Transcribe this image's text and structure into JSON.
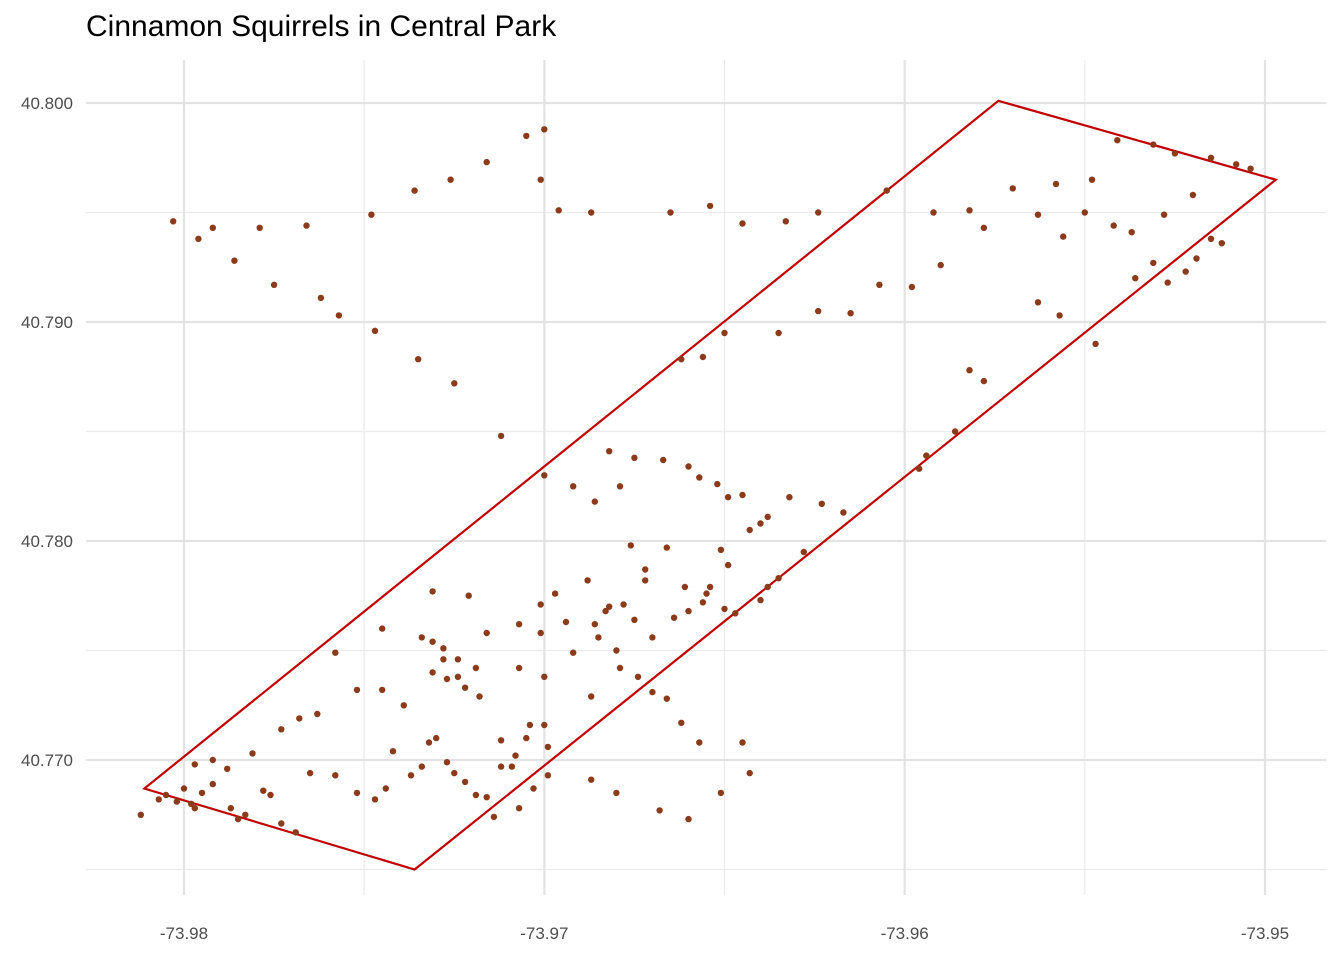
{
  "chart_data": {
    "type": "scatter",
    "title": "Cinnamon Squirrels in Central Park",
    "xlabel": "",
    "ylabel": "",
    "xlim": [
      -73.9825,
      -73.9495
    ],
    "ylim": [
      40.7645,
      40.8015
    ],
    "x_ticks": [
      -73.98,
      -73.97,
      -73.96,
      -73.95
    ],
    "x_tick_labels": [
      "-73.98",
      "-73.97",
      "-73.96",
      "-73.95"
    ],
    "y_ticks": [
      40.77,
      40.78,
      40.79,
      40.8
    ],
    "y_tick_labels": [
      "40.770",
      "40.780",
      "40.790",
      "40.800"
    ],
    "grid": true,
    "legend": "none",
    "point_color": "#8B3A1A",
    "boundary_color": "#C00000",
    "boundary": [
      [
        -73.9811,
        40.7687
      ],
      [
        -73.9574,
        40.8001
      ],
      [
        -73.9497,
        40.7965
      ],
      [
        -73.9736,
        40.765
      ]
    ],
    "points": [
      [
        -73.9812,
        40.7675
      ],
      [
        -73.9807,
        40.7682
      ],
      [
        -73.9805,
        40.7684
      ],
      [
        -73.98,
        40.7687
      ],
      [
        -73.9802,
        40.7681
      ],
      [
        -73.9798,
        40.768
      ],
      [
        -73.9795,
        40.7685
      ],
      [
        -73.9792,
        40.7689
      ],
      [
        -73.9797,
        40.7678
      ],
      [
        -73.9785,
        40.7673
      ],
      [
        -73.9787,
        40.7678
      ],
      [
        -73.9783,
        40.7675
      ],
      [
        -73.9778,
        40.7686
      ],
      [
        -73.9776,
        40.7684
      ],
      [
        -73.9773,
        40.7671
      ],
      [
        -73.9769,
        40.7667
      ],
      [
        -73.9788,
        40.7696
      ],
      [
        -73.9792,
        40.77
      ],
      [
        -73.9797,
        40.7698
      ],
      [
        -73.9781,
        40.7703
      ],
      [
        -73.9773,
        40.7714
      ],
      [
        -73.9768,
        40.7719
      ],
      [
        -73.9763,
        40.7721
      ],
      [
        -73.9765,
        40.7694
      ],
      [
        -73.9758,
        40.7693
      ],
      [
        -73.9752,
        40.7685
      ],
      [
        -73.9747,
        40.7682
      ],
      [
        -73.9744,
        40.7687
      ],
      [
        -73.9742,
        40.7704
      ],
      [
        -73.9737,
        40.7693
      ],
      [
        -73.9734,
        40.7697
      ],
      [
        -73.9732,
        40.7708
      ],
      [
        -73.973,
        40.771
      ],
      [
        -73.9727,
        40.7699
      ],
      [
        -73.9725,
        40.7694
      ],
      [
        -73.9722,
        40.769
      ],
      [
        -73.9719,
        40.7684
      ],
      [
        -73.9716,
        40.7683
      ],
      [
        -73.9712,
        40.7697
      ],
      [
        -73.9709,
        40.7697
      ],
      [
        -73.9714,
        40.7674
      ],
      [
        -73.9707,
        40.7678
      ],
      [
        -73.9703,
        40.7687
      ],
      [
        -73.9699,
        40.7706
      ],
      [
        -73.9704,
        40.7716
      ],
      [
        -73.9718,
        40.7729
      ],
      [
        -73.9722,
        40.7733
      ],
      [
        -73.9727,
        40.7737
      ],
      [
        -73.9731,
        40.774
      ],
      [
        -73.9719,
        40.7742
      ],
      [
        -73.9724,
        40.7746
      ],
      [
        -73.9728,
        40.7751
      ],
      [
        -73.9731,
        40.7754
      ],
      [
        -73.9734,
        40.7756
      ],
      [
        -73.9728,
        40.7746
      ],
      [
        -73.9724,
        40.7738
      ],
      [
        -73.9739,
        40.7725
      ],
      [
        -73.9745,
        40.7732
      ],
      [
        -73.9752,
        40.7732
      ],
      [
        -73.9758,
        40.7749
      ],
      [
        -73.9745,
        40.776
      ],
      [
        -73.9731,
        40.7777
      ],
      [
        -73.9721,
        40.7775
      ],
      [
        -73.9716,
        40.7758
      ],
      [
        -73.9707,
        40.7762
      ],
      [
        -73.9701,
        40.7758
      ],
      [
        -73.9686,
        40.7762
      ],
      [
        -73.9682,
        40.777
      ],
      [
        -73.9675,
        40.7764
      ],
      [
        -73.967,
        40.7756
      ],
      [
        -73.9664,
        40.7765
      ],
      [
        -73.966,
        40.7768
      ],
      [
        -73.9655,
        40.7776
      ],
      [
        -73.9654,
        40.7779
      ],
      [
        -73.9672,
        40.7787
      ],
      [
        -73.9666,
        40.7797
      ],
      [
        -73.9676,
        40.7798
      ],
      [
        -73.9688,
        40.7782
      ],
      [
        -73.9697,
        40.7776
      ],
      [
        -73.9701,
        40.7771
      ],
      [
        -73.9694,
        40.7763
      ],
      [
        -73.9707,
        40.7742
      ],
      [
        -73.97,
        40.7738
      ],
      [
        -73.9692,
        40.7749
      ],
      [
        -73.9679,
        40.7742
      ],
      [
        -73.9687,
        40.7729
      ],
      [
        -73.97,
        40.7716
      ],
      [
        -73.9705,
        40.771
      ],
      [
        -73.9712,
        40.7709
      ],
      [
        -73.9708,
        40.7702
      ],
      [
        -73.9699,
        40.7693
      ],
      [
        -73.9687,
        40.7691
      ],
      [
        -73.968,
        40.7685
      ],
      [
        -73.9668,
        40.7677
      ],
      [
        -73.966,
        40.7673
      ],
      [
        -73.9651,
        40.7685
      ],
      [
        -73.9643,
        40.7694
      ],
      [
        -73.9645,
        40.7708
      ],
      [
        -73.9657,
        40.7708
      ],
      [
        -73.9662,
        40.7717
      ],
      [
        -73.9666,
        40.7728
      ],
      [
        -73.967,
        40.7731
      ],
      [
        -73.9674,
        40.7738
      ],
      [
        -73.968,
        40.775
      ],
      [
        -73.9685,
        40.7756
      ],
      [
        -73.9683,
        40.7768
      ],
      [
        -73.9678,
        40.7771
      ],
      [
        -73.9672,
        40.7782
      ],
      [
        -73.9661,
        40.7779
      ],
      [
        -73.9656,
        40.7772
      ],
      [
        -73.965,
        40.7769
      ],
      [
        -73.9647,
        40.7767
      ],
      [
        -73.964,
        40.7773
      ],
      [
        -73.9638,
        40.7779
      ],
      [
        -73.9649,
        40.7789
      ],
      [
        -73.9651,
        40.7796
      ],
      [
        -73.9643,
        40.7805
      ],
      [
        -73.964,
        40.7808
      ],
      [
        -73.9638,
        40.7811
      ],
      [
        -73.9632,
        40.782
      ],
      [
        -73.9623,
        40.7817
      ],
      [
        -73.9617,
        40.7813
      ],
      [
        -73.9628,
        40.7795
      ],
      [
        -73.9635,
        40.7783
      ],
      [
        -73.9645,
        40.7821
      ],
      [
        -73.9649,
        40.782
      ],
      [
        -73.9652,
        40.7826
      ],
      [
        -73.9657,
        40.7829
      ],
      [
        -73.966,
        40.7834
      ],
      [
        -73.9667,
        40.7837
      ],
      [
        -73.9675,
        40.7838
      ],
      [
        -73.9682,
        40.7841
      ],
      [
        -73.9679,
        40.7825
      ],
      [
        -73.9686,
        40.7818
      ],
      [
        -73.9692,
        40.7825
      ],
      [
        -73.97,
        40.783
      ],
      [
        -73.9712,
        40.7848
      ],
      [
        -73.9725,
        40.7872
      ],
      [
        -73.9735,
        40.7883
      ],
      [
        -73.9747,
        40.7896
      ],
      [
        -73.9757,
        40.7903
      ],
      [
        -73.9762,
        40.7911
      ],
      [
        -73.9775,
        40.7917
      ],
      [
        -73.9786,
        40.7928
      ],
      [
        -73.9796,
        40.7938
      ],
      [
        -73.9803,
        40.7946
      ],
      [
        -73.9792,
        40.7943
      ],
      [
        -73.9779,
        40.7943
      ],
      [
        -73.9766,
        40.7944
      ],
      [
        -73.9748,
        40.7949
      ],
      [
        -73.9736,
        40.796
      ],
      [
        -73.9726,
        40.7965
      ],
      [
        -73.9716,
        40.7973
      ],
      [
        -73.9705,
        40.7985
      ],
      [
        -73.97,
        40.7988
      ],
      [
        -73.9701,
        40.7965
      ],
      [
        -73.9696,
        40.7951
      ],
      [
        -73.9687,
        40.795
      ],
      [
        -73.9665,
        40.795
      ],
      [
        -73.9654,
        40.7953
      ],
      [
        -73.9645,
        40.7945
      ],
      [
        -73.9633,
        40.7946
      ],
      [
        -73.9624,
        40.795
      ],
      [
        -73.9605,
        40.796
      ],
      [
        -73.9592,
        40.795
      ],
      [
        -73.9582,
        40.7951
      ],
      [
        -73.957,
        40.7961
      ],
      [
        -73.9558,
        40.7963
      ],
      [
        -73.9548,
        40.7965
      ],
      [
        -73.9541,
        40.7983
      ],
      [
        -73.9531,
        40.7981
      ],
      [
        -73.9525,
        40.7977
      ],
      [
        -73.9515,
        40.7975
      ],
      [
        -73.9508,
        40.7972
      ],
      [
        -73.9504,
        40.797
      ],
      [
        -73.952,
        40.7958
      ],
      [
        -73.9528,
        40.7949
      ],
      [
        -73.9537,
        40.7941
      ],
      [
        -73.9542,
        40.7944
      ],
      [
        -73.955,
        40.795
      ],
      [
        -73.9556,
        40.7939
      ],
      [
        -73.9563,
        40.7949
      ],
      [
        -73.9578,
        40.7943
      ],
      [
        -73.959,
        40.7926
      ],
      [
        -73.9598,
        40.7916
      ],
      [
        -73.9607,
        40.7917
      ],
      [
        -73.9615,
        40.7904
      ],
      [
        -73.9624,
        40.7905
      ],
      [
        -73.9635,
        40.7895
      ],
      [
        -73.965,
        40.7895
      ],
      [
        -73.9656,
        40.7884
      ],
      [
        -73.9662,
        40.7883
      ],
      [
        -73.9582,
        40.7878
      ],
      [
        -73.9578,
        40.7873
      ],
      [
        -73.9557,
        40.7903
      ],
      [
        -73.9563,
        40.7909
      ],
      [
        -73.9547,
        40.789
      ],
      [
        -73.9594,
        40.7839
      ],
      [
        -73.9596,
        40.7833
      ],
      [
        -73.9586,
        40.785
      ],
      [
        -73.9536,
        40.792
      ],
      [
        -73.9531,
        40.7927
      ],
      [
        -73.9527,
        40.7918
      ],
      [
        -73.9522,
        40.7923
      ],
      [
        -73.9519,
        40.7929
      ],
      [
        -73.9515,
        40.7938
      ],
      [
        -73.9512,
        40.7936
      ]
    ]
  }
}
